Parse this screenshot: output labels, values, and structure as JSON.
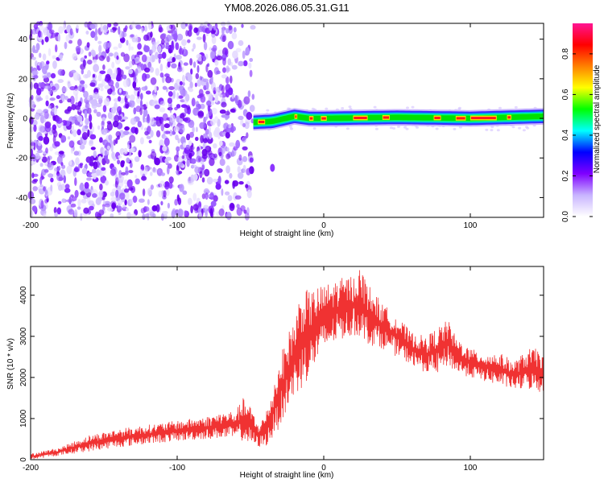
{
  "title": "YM08.2026.086.05.31.G11",
  "chart_data": [
    {
      "type": "heatmap",
      "title": "",
      "xlabel": "Height of straight line (km)",
      "ylabel": "Frequency (Hz)",
      "xlim": [
        -200,
        150
      ],
      "ylim": [
        -50,
        48
      ],
      "x_ticks": [
        -200,
        -100,
        0,
        100
      ],
      "y_ticks": [
        -40,
        -20,
        0,
        20,
        40
      ],
      "x_tick_labels": [
        "-200",
        "-100",
        "0",
        "100"
      ],
      "y_tick_labels": [
        "-40",
        "-20",
        "0",
        "20",
        "40"
      ],
      "noise_region_x": [
        -200,
        -48
      ],
      "band": {
        "x_start": -48,
        "x_end": 150,
        "center_freq": [
          [
            -48,
            -2
          ],
          [
            -35,
            -1.5
          ],
          [
            -20,
            1
          ],
          [
            -10,
            0
          ],
          [
            0,
            0
          ],
          [
            50,
            0.5
          ],
          [
            100,
            0
          ],
          [
            150,
            1
          ]
        ],
        "peak_segments": [
          [
            -45,
            -40
          ],
          [
            -20,
            -18
          ],
          [
            -10,
            -7
          ],
          [
            -2,
            2
          ],
          [
            20,
            30
          ],
          [
            40,
            45
          ],
          [
            75,
            80
          ],
          [
            90,
            97
          ],
          [
            100,
            118
          ],
          [
            125,
            128
          ]
        ]
      },
      "colorbar": {
        "label": "Normalized spectral amplitude",
        "range": [
          0.0,
          0.95
        ],
        "ticks": [
          0.0,
          0.2,
          0.4,
          0.6,
          0.8
        ],
        "tick_labels": [
          "0.0",
          "0.2",
          "0.4",
          "0.6",
          "0.8"
        ],
        "colormap": [
          "#ffffff",
          "#c8b4ff",
          "#7f00ff",
          "#0000ff",
          "#00ffff",
          "#00ff00",
          "#ffff00",
          "#ff8000",
          "#ff0000",
          "#ff1493"
        ]
      },
      "grid": false
    },
    {
      "type": "line",
      "title": "",
      "xlabel": "Height of straight line (km)",
      "ylabel": "SNR (10 * v/v)",
      "xlim": [
        -200,
        150
      ],
      "ylim": [
        0,
        4700
      ],
      "x_ticks": [
        -200,
        -100,
        0,
        100
      ],
      "y_ticks": [
        0,
        1000,
        2000,
        3000,
        4000
      ],
      "x_tick_labels": [
        "-200",
        "-100",
        "0",
        "100"
      ],
      "y_tick_labels": [
        "0",
        "1000",
        "2000",
        "3000",
        "4000"
      ],
      "grid": false,
      "series": [
        {
          "color": "#f03232",
          "envelope_x": [
            -200,
            -180,
            -160,
            -140,
            -120,
            -100,
            -80,
            -70,
            -60,
            -55,
            -50,
            -45,
            -40,
            -35,
            -30,
            -25,
            -20,
            -15,
            -10,
            -5,
            0,
            10,
            20,
            25,
            30,
            40,
            50,
            60,
            70,
            80,
            85,
            90,
            100,
            110,
            120,
            130,
            140,
            150
          ],
          "envelope_low": [
            0,
            100,
            200,
            300,
            380,
            450,
            500,
            520,
            500,
            450,
            350,
            300,
            300,
            500,
            800,
            1200,
            1500,
            1700,
            2000,
            2300,
            2600,
            2900,
            3000,
            3000,
            2800,
            2700,
            2500,
            2300,
            2100,
            2100,
            2300,
            2100,
            2000,
            1900,
            1800,
            1700,
            1700,
            1600
          ],
          "envelope_high": [
            150,
            300,
            600,
            750,
            850,
            950,
            1050,
            1150,
            1200,
            1500,
            1300,
            900,
            1100,
            1700,
            2500,
            3000,
            3500,
            4200,
            4100,
            4200,
            4250,
            4400,
            4500,
            4700,
            4300,
            3800,
            3500,
            3100,
            3000,
            3300,
            3400,
            3000,
            2700,
            2600,
            2600,
            2400,
            2700,
            2700
          ]
        }
      ]
    }
  ]
}
